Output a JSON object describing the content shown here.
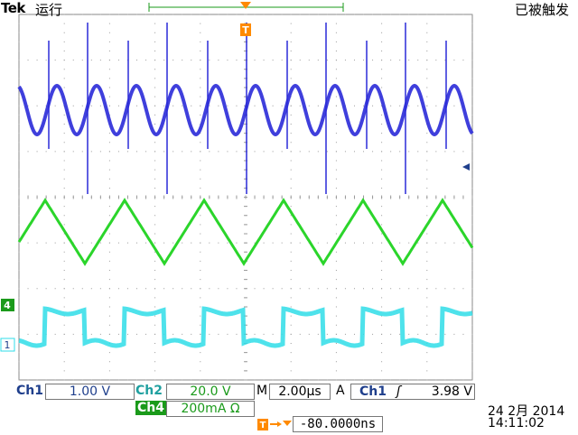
{
  "header": {
    "brand": "Tek",
    "run_status": "运行",
    "trigger_status": "已被触发"
  },
  "markers": {
    "trigger_pos_glyph": "T",
    "ch4_glyph": "4",
    "ch1_glyph": "1"
  },
  "channels": {
    "ch1": {
      "label": "Ch1",
      "scale": "1.00 V",
      "color": "#2a2ad8"
    },
    "ch2": {
      "label": "Ch2",
      "scale": "20.0 V",
      "color": "#2bd52b"
    },
    "ch4": {
      "label": "Ch4",
      "scale": "200mA Ω",
      "color": "#2fdde8"
    }
  },
  "timebase": {
    "label": "M",
    "value": "2.00µs"
  },
  "trigger": {
    "mode": "A",
    "source": "Ch1",
    "slope_glyph": "ʃ",
    "level": "3.98 V"
  },
  "position": {
    "glyph": "T→▾",
    "value": "-80.0000ns"
  },
  "datetime": {
    "date": "24 2月  2014",
    "time": "14:11:02"
  }
}
